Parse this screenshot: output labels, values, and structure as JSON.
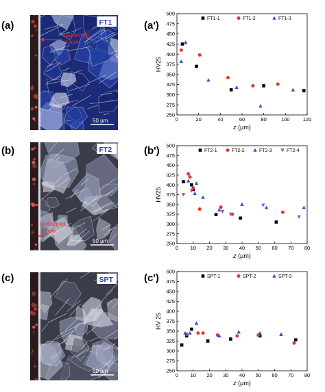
{
  "panel_labels": [
    "(a)",
    "(b)",
    "(c)"
  ],
  "micrographs": [
    {
      "label": "FT1",
      "annotation": "Deformed Layer",
      "scale_bar": "50 µm",
      "tone": "blue"
    },
    {
      "label": "FT2",
      "annotation": "Deformed Layer",
      "scale_bar": "50 µm",
      "tone": "gray"
    },
    {
      "label": "SPT",
      "annotation": "",
      "scale_bar": "50 µm",
      "tone": "gray"
    }
  ],
  "colors": {
    "series1": "#000000",
    "series2": "#e8332b",
    "series3": "#2a52d6",
    "series4": "#b040d8",
    "annotation": "#e8332b",
    "micro_label": "#2a3fb0"
  },
  "chart_data": [
    {
      "type": "scatter",
      "panel_label": "(a')",
      "xlabel": "z (µm)",
      "ylabel": "HV25",
      "xlim": [
        0,
        120
      ],
      "ylim": [
        250,
        500
      ],
      "xticks": [
        0,
        20,
        40,
        60,
        80,
        100,
        120
      ],
      "yticks": [
        250,
        275,
        300,
        325,
        350,
        375,
        400,
        425,
        450,
        475,
        500
      ],
      "legend_position": "top-right",
      "series": [
        {
          "name": "FT1-1",
          "marker": "square",
          "color": "#000000",
          "x": [
            5,
            18,
            50,
            80,
            117
          ],
          "y": [
            425,
            370,
            312,
            322,
            310
          ]
        },
        {
          "name": "FT1-2",
          "marker": "circle",
          "color": "#e8332b",
          "x": [
            4,
            21,
            47,
            70,
            93
          ],
          "y": [
            410,
            398,
            342,
            322,
            326
          ]
        },
        {
          "name": "FT1-3",
          "marker": "triangle-up",
          "color": "#2a52d6",
          "x": [
            4,
            8,
            29,
            55,
            77,
            107
          ],
          "y": [
            382,
            429,
            336,
            318,
            272,
            312
          ]
        }
      ]
    },
    {
      "type": "scatter",
      "panel_label": "(b')",
      "xlabel": "z (µm)",
      "ylabel": "HV25",
      "xlim": [
        0,
        80
      ],
      "ylim": [
        250,
        500
      ],
      "xticks": [
        0,
        10,
        20,
        30,
        40,
        50,
        60,
        70,
        80
      ],
      "yticks": [
        250,
        275,
        300,
        325,
        350,
        375,
        400,
        425,
        450,
        475,
        500
      ],
      "legend_position": "top-right",
      "series": [
        {
          "name": "FT2-1",
          "marker": "square",
          "color": "#000000",
          "x": [
            4,
            9,
            10,
            24,
            39,
            61
          ],
          "y": [
            408,
            400,
            388,
            324,
            315,
            305
          ]
        },
        {
          "name": "FT2-2",
          "marker": "circle",
          "color": "#e8332b",
          "x": [
            7,
            8,
            10,
            14,
            27,
            34,
            65
          ],
          "y": [
            428,
            420,
            392,
            338,
            343,
            325,
            330
          ]
        },
        {
          "name": "FT2-3",
          "marker": "triangle-up",
          "color": "#2a52d6",
          "x": [
            7,
            11,
            12,
            16,
            26,
            40,
            55,
            78
          ],
          "y": [
            410,
            378,
            404,
            368,
            336,
            350,
            342,
            342
          ]
        },
        {
          "name": "FT2-4",
          "marker": "triangle-down",
          "color": "#b040d8",
          "x": [
            4,
            9,
            28,
            33,
            53,
            75
          ],
          "y": [
            375,
            385,
            332,
            325,
            348,
            318
          ]
        }
      ]
    },
    {
      "type": "scatter",
      "panel_label": "(c')",
      "xlabel": "z (µm)",
      "ylabel": "HV 25",
      "xlim": [
        0,
        80
      ],
      "ylim": [
        250,
        500
      ],
      "xticks": [
        0,
        10,
        20,
        30,
        40,
        50,
        60,
        70,
        80
      ],
      "yticks": [
        250,
        275,
        300,
        325,
        350,
        375,
        400,
        425,
        450,
        475,
        500
      ],
      "legend_position": "top-right",
      "series": [
        {
          "name": "SPT-1",
          "marker": "square",
          "color": "#000000",
          "x": [
            3,
            6,
            9,
            19,
            33,
            51,
            73
          ],
          "y": [
            315,
            338,
            355,
            325,
            330,
            338,
            328
          ]
        },
        {
          "name": "SPT-2",
          "marker": "circle",
          "color": "#e8332b",
          "x": [
            6,
            13,
            16,
            25,
            37,
            50,
            72
          ],
          "y": [
            342,
            345,
            345,
            340,
            338,
            340,
            320
          ]
        },
        {
          "name": "SPT-3",
          "marker": "triangle-up",
          "color": "#2a52d6",
          "x": [
            5,
            8,
            12,
            26,
            38,
            51,
            64
          ],
          "y": [
            345,
            345,
            370,
            338,
            348,
            345,
            342
          ]
        }
      ]
    }
  ]
}
